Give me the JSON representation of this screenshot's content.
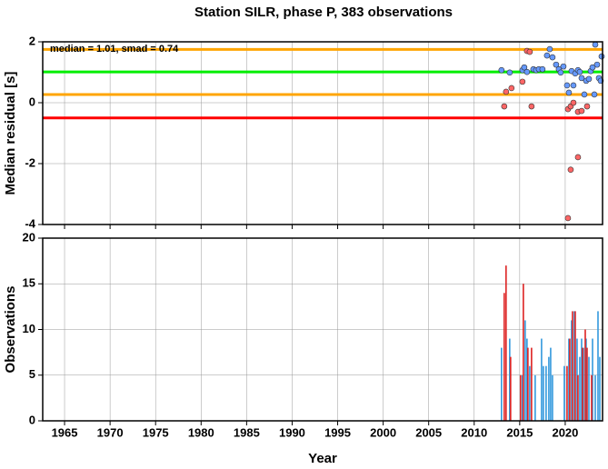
{
  "chart_data": [
    {
      "type": "scatter",
      "title": "Station SILR, phase P, 383 observations",
      "ylabel": "Median residual [s]",
      "annotation": "median = 1.01, smad = 0.74",
      "xlim": [
        1962.6,
        2024.1
      ],
      "xticks": [
        1965,
        1970,
        1975,
        1980,
        1985,
        1990,
        1995,
        2000,
        2005,
        2010,
        2015,
        2020
      ],
      "ylim": [
        -4,
        2
      ],
      "yticks": [
        -4,
        -2,
        0,
        2
      ],
      "grid": true,
      "hlines": [
        {
          "value": 1.75,
          "color": "#ffa500"
        },
        {
          "value": 1.01,
          "color": "#00ee00"
        },
        {
          "value": 0.27,
          "color": "#ffa500"
        },
        {
          "value": -0.5,
          "color": "#ff0000"
        }
      ],
      "series": [
        {
          "color": "#6699ff",
          "x": [
            2013.0,
            2013.9,
            2015.3,
            2015.5,
            2015.8,
            2016.5,
            2016.8,
            2017.1,
            2017.5,
            2018.0,
            2018.3,
            2018.6,
            2019.0,
            2019.3,
            2019.5,
            2019.8,
            2020.2,
            2020.4,
            2020.7,
            2020.9,
            2021.1,
            2021.4,
            2021.6,
            2021.8,
            2022.1,
            2022.3,
            2022.6,
            2022.8,
            2023.0,
            2023.2,
            2023.3,
            2023.5,
            2023.7,
            2023.9,
            2024.0
          ],
          "values": [
            1.07,
            0.99,
            1.07,
            1.16,
            1.01,
            1.1,
            1.07,
            1.1,
            1.1,
            1.55,
            1.76,
            1.49,
            1.25,
            1.1,
            0.99,
            1.19,
            0.57,
            0.33,
            1.04,
            0.57,
            0.96,
            1.07,
            1.01,
            0.81,
            0.27,
            0.72,
            0.78,
            1.04,
            1.16,
            0.27,
            1.91,
            1.25,
            0.81,
            0.72,
            1.52
          ]
        },
        {
          "color": "#ff6666",
          "x": [
            2013.3,
            2013.5,
            2014.1,
            2015.3,
            2015.8,
            2016.1,
            2016.3,
            2020.3,
            2020.6,
            2020.9,
            2021.4,
            2021.8,
            2022.4,
            2021.4,
            2020.6,
            2020.3
          ],
          "values": [
            -0.12,
            0.36,
            0.48,
            0.69,
            1.7,
            1.67,
            -0.12,
            -0.21,
            -0.12,
            0.0,
            -0.3,
            -0.27,
            -0.12,
            -1.79,
            -2.2,
            -3.79
          ]
        }
      ]
    },
    {
      "type": "bar",
      "xlabel": "Year",
      "ylabel": "Observations",
      "xlim": [
        1962.6,
        2024.1
      ],
      "xticks": [
        1965,
        1970,
        1975,
        1980,
        1985,
        1990,
        1995,
        2000,
        2005,
        2010,
        2015,
        2020
      ],
      "ylim": [
        0,
        20
      ],
      "yticks": [
        0,
        5,
        10,
        15,
        20
      ],
      "grid": true,
      "series": [
        {
          "color": "#3399dd",
          "x": [
            2013.0,
            2013.9,
            2015.3,
            2015.6,
            2015.8,
            2016.1,
            2016.7,
            2017.4,
            2017.6,
            2017.9,
            2018.2,
            2018.4,
            2018.6,
            2019.9,
            2020.4,
            2020.7,
            2021.0,
            2021.3,
            2021.6,
            2021.8,
            2022.0,
            2022.3,
            2022.6,
            2023.0,
            2023.3,
            2023.6,
            2023.8
          ],
          "values": [
            8,
            9,
            5,
            11,
            9,
            6,
            5,
            9,
            6,
            6,
            7,
            8,
            5,
            6,
            9,
            11,
            12,
            9,
            7,
            9,
            8,
            9,
            7,
            9,
            5,
            12,
            7
          ]
        },
        {
          "color": "#dd2222",
          "x": [
            2013.3,
            2013.5,
            2014.0,
            2015.1,
            2015.4,
            2015.9,
            2016.3,
            2020.2,
            2020.5,
            2020.8,
            2021.1,
            2021.4,
            2021.9,
            2022.2,
            2022.4,
            2022.9
          ],
          "values": [
            14,
            17,
            7,
            5,
            15,
            8,
            8,
            6,
            9,
            12,
            12,
            5,
            8,
            10,
            8,
            5
          ]
        }
      ]
    }
  ]
}
